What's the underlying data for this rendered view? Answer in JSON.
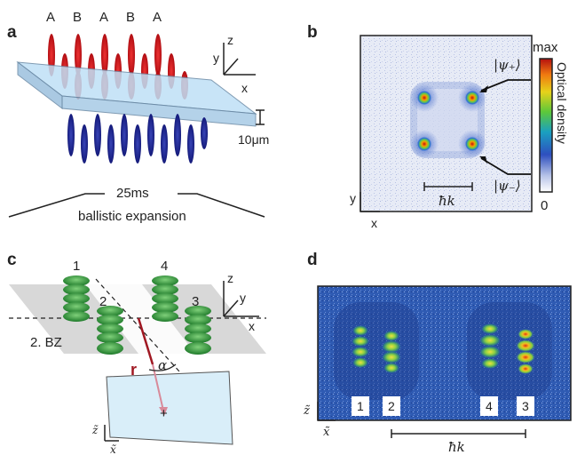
{
  "panel_a": {
    "label": "a",
    "sites": [
      "A",
      "B",
      "A",
      "B",
      "A"
    ],
    "axes": {
      "x": "x",
      "y": "y",
      "z": "z"
    },
    "scale_label": "10μm",
    "expansion_time": "25ms",
    "expansion_caption": "ballistic expansion"
  },
  "panel_b": {
    "label": "b",
    "state_plus": "|ψ₊⟩",
    "state_minus": "|ψ₋⟩",
    "momentum_label": "ħk",
    "axes": {
      "x": "x",
      "y": "y"
    },
    "colorbar": {
      "max_label": "max",
      "min_label": "0",
      "title": "Optical density"
    }
  },
  "panel_c": {
    "label": "c",
    "orbitals": [
      "1",
      "2",
      "3",
      "4"
    ],
    "bz_label": "2. BZ",
    "vector_label": "r",
    "angle_label": "α",
    "axes": {
      "x": "x",
      "y": "y",
      "z": "z"
    },
    "screen_axes": {
      "x": "x̃",
      "z": "z̃"
    },
    "center_mark": "+"
  },
  "panel_d": {
    "label": "d",
    "clouds": [
      "1",
      "2",
      "4",
      "3"
    ],
    "axes": {
      "x": "x̃",
      "z": "z̃"
    },
    "momentum_label": "ħk"
  }
}
